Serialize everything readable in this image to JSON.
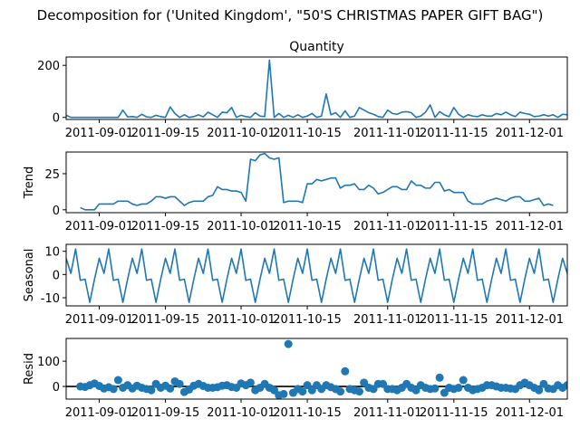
{
  "chart_data": {
    "type": "line",
    "suptitle": "Decomposition for ('United Kingdom', \"50'S CHRISTMAS PAPER GIFT BAG\")",
    "x_range": [
      "2011-08-25",
      "2011-12-09"
    ],
    "x_ticks": [
      {
        "date": "2011-09-01",
        "label": "2011-09-01"
      },
      {
        "date": "2011-09-15",
        "label": "2011-09-15"
      },
      {
        "date": "2011-10-01",
        "label": "2011-10-01"
      },
      {
        "date": "2011-10-15",
        "label": "2011-10-15"
      },
      {
        "date": "2011-11-01",
        "label": "2011-11-01"
      },
      {
        "date": "2011-11-15",
        "label": "2011-11-15"
      },
      {
        "date": "2011-12-01",
        "label": "2011-12-01"
      }
    ],
    "panels": [
      {
        "key": "quantity",
        "title": "Quantity",
        "ylabel": "",
        "kind": "line",
        "ylim": [
          -8,
          232
        ],
        "yticks": [
          0,
          200
        ],
        "values": [
          8,
          0,
          0,
          0,
          0,
          0,
          0,
          0,
          0,
          0,
          0,
          0,
          28,
          2,
          3,
          0,
          12,
          2,
          0,
          8,
          3,
          0,
          40,
          15,
          0,
          10,
          0,
          3,
          10,
          2,
          20,
          10,
          0,
          20,
          18,
          38,
          0,
          8,
          3,
          0,
          18,
          5,
          3,
          220,
          0,
          15,
          0,
          8,
          0,
          10,
          0,
          5,
          15,
          0,
          5,
          90,
          10,
          18,
          0,
          25,
          0,
          5,
          38,
          28,
          18,
          12,
          3,
          0,
          28,
          15,
          12,
          20,
          22,
          18,
          0,
          5,
          20,
          48,
          0,
          22,
          10,
          3,
          38,
          12,
          0,
          10,
          5,
          3,
          10,
          5,
          5,
          15,
          10,
          20,
          10,
          3,
          20,
          15,
          12,
          3,
          5,
          10,
          5,
          10,
          0,
          12,
          10,
          0
        ]
      },
      {
        "key": "trend",
        "title": "",
        "ylabel": "Trend",
        "kind": "line",
        "offset": 3,
        "ylim": [
          -2,
          40
        ],
        "yticks": [
          0,
          25
        ],
        "values": [
          1.5,
          0,
          0,
          0,
          4,
          4,
          4,
          4,
          6,
          6,
          6,
          4,
          3,
          4,
          4,
          6,
          9,
          9,
          8,
          9,
          9,
          6,
          3,
          5,
          6,
          6,
          6,
          9,
          10,
          16,
          14,
          14,
          13,
          13,
          12,
          6,
          35,
          34,
          38,
          39,
          36,
          35,
          36,
          5,
          6,
          6,
          6,
          5,
          18,
          18,
          21,
          20,
          21,
          22,
          22,
          15,
          17,
          17,
          18,
          14,
          14,
          17,
          15,
          11,
          12,
          14,
          16,
          16,
          14,
          14,
          20,
          17,
          17,
          15,
          15,
          19,
          19,
          13,
          14,
          12,
          12,
          12,
          6,
          4,
          4,
          4,
          6,
          7,
          8,
          7,
          6,
          8,
          9,
          9,
          6,
          6,
          7,
          8,
          3,
          4,
          3
        ]
      },
      {
        "key": "seasonal",
        "title": "",
        "ylabel": "Seasonal",
        "kind": "line",
        "ylim": [
          -13.5,
          13
        ],
        "yticks": [
          -10,
          0,
          10
        ],
        "values": [
          7,
          0.5,
          11,
          -2.5,
          -2,
          -12,
          -2,
          7,
          0.5,
          11,
          -2.5,
          -2,
          -12,
          -2,
          7,
          0.5,
          11,
          -2.5,
          -2,
          -12,
          -2,
          7,
          0.5,
          11,
          -2.5,
          -2,
          -12,
          -2,
          7,
          0.5,
          11,
          -2.5,
          -2,
          -12,
          -2,
          7,
          0.5,
          11,
          -2.5,
          -2,
          -12,
          -2,
          7,
          0.5,
          11,
          -2.5,
          -2,
          -12,
          -2,
          7,
          0.5,
          11,
          -2.5,
          -2,
          -12,
          -2,
          7,
          0.5,
          11,
          -2.5,
          -2,
          -12,
          -2,
          7,
          0.5,
          11,
          -2.5,
          -2,
          -12,
          -2,
          7,
          0.5,
          11,
          -2.5,
          -2,
          -12,
          -2,
          7,
          0.5,
          11,
          -2.5,
          -2,
          -12,
          -2,
          7,
          0.5,
          11,
          -2.5,
          -2,
          -12,
          -2,
          7,
          0.5,
          11,
          -2.5,
          -2,
          -12,
          -2,
          7,
          0.5,
          11,
          -2.5,
          -2,
          -12,
          -2,
          7,
          0.5,
          11,
          -2.5,
          -2
        ]
      },
      {
        "key": "resid",
        "title": "",
        "ylabel": "Resid",
        "kind": "scatter",
        "offset": 3,
        "ylim": [
          -50,
          190
        ],
        "yticks": [
          0,
          100
        ],
        "baseline": 0,
        "values": [
          0,
          -2,
          5,
          12,
          2,
          -8,
          -3,
          -10,
          25,
          -5,
          5,
          -8,
          3,
          -5,
          -10,
          -15,
          10,
          -5,
          3,
          -8,
          20,
          10,
          -22,
          -12,
          3,
          10,
          2,
          -5,
          -5,
          -3,
          3,
          5,
          -2,
          -5,
          12,
          5,
          15,
          -15,
          -5,
          10,
          -5,
          -15,
          -35,
          -30,
          168,
          -25,
          -10,
          -20,
          5,
          -15,
          5,
          -10,
          5,
          -3,
          -10,
          -20,
          60,
          -10,
          -15,
          -20,
          15,
          -5,
          -10,
          10,
          10,
          -10,
          -10,
          -15,
          -5,
          10,
          -5,
          -15,
          5,
          -5,
          -10,
          -8,
          35,
          -25,
          -5,
          -10,
          -5,
          25,
          -5,
          -15,
          -10,
          -5,
          5,
          5,
          0,
          -5,
          -5,
          -8,
          -10,
          5,
          15,
          5,
          -5,
          -15,
          10,
          -8,
          -10,
          5,
          -5,
          5,
          0,
          -2,
          -5
        ]
      }
    ]
  },
  "style": {
    "line_color": "#1f77b4",
    "marker_color": "#1f77b4",
    "axis_color": "#000000",
    "baseline_color": "#000000",
    "background": "#ffffff"
  }
}
